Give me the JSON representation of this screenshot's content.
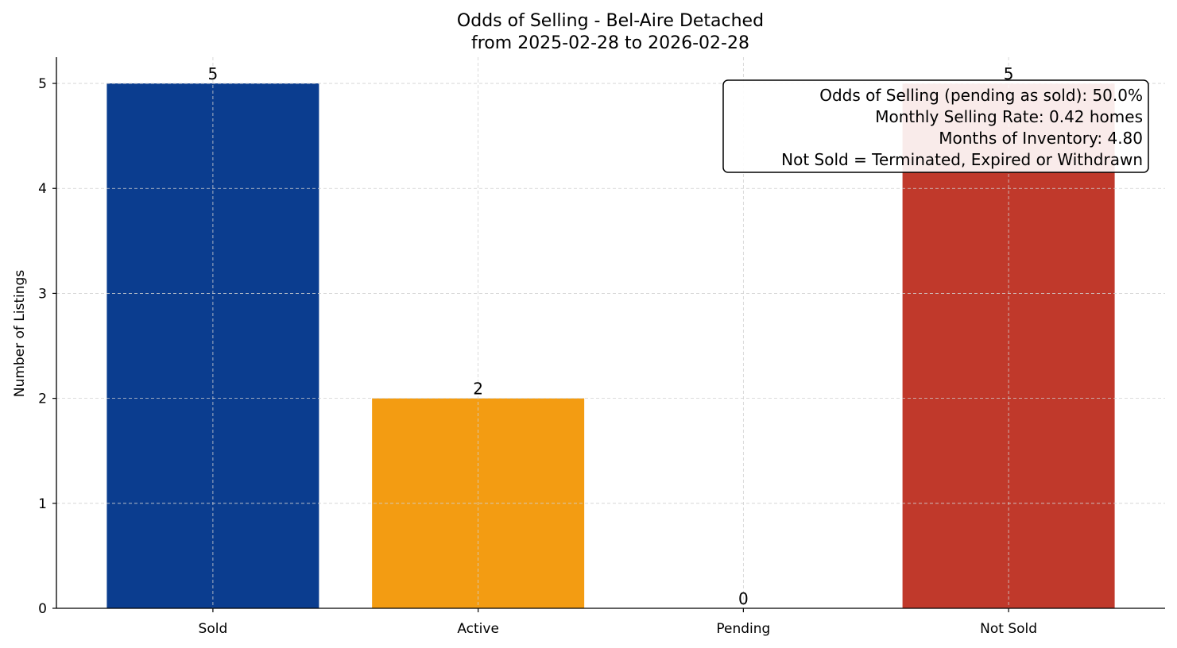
{
  "chart_data": {
    "type": "bar",
    "title": "Odds of Selling - Bel-Aire Detached",
    "subtitle": "from 2025-02-28 to 2026-02-28",
    "xlabel": "",
    "ylabel": "Number of Listings",
    "categories": [
      "Sold",
      "Active",
      "Pending",
      "Not Sold"
    ],
    "values": [
      5,
      2,
      0,
      5
    ],
    "data_labels": [
      "5",
      "2",
      "0",
      "5"
    ],
    "colors": [
      "#0b3d8f",
      "#f39c12",
      "#27ae60",
      "#c0392b"
    ],
    "ylim": [
      0,
      5.25
    ],
    "yticks": [
      0,
      1,
      2,
      3,
      4,
      5
    ],
    "grid": true,
    "annotation": {
      "placement": "top-right",
      "lines": [
        "Odds of Selling (pending as sold): 50.0%",
        "Monthly Selling Rate: 0.42 homes",
        "Months of Inventory: 4.80",
        "Not Sold = Terminated, Expired or Withdrawn"
      ]
    }
  }
}
